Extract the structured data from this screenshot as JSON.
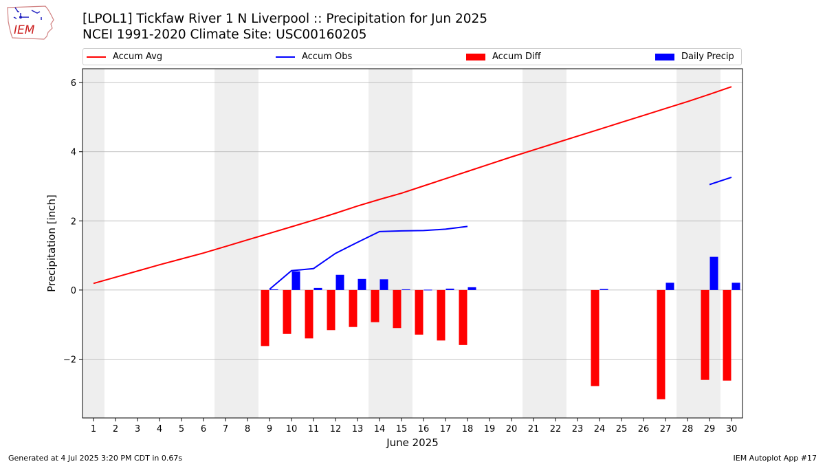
{
  "logo": {
    "text": "IEM"
  },
  "header": {
    "title_line1": "[LPOL1] Tickfaw River 1 N Liverpool :: Precipitation for Jun 2025",
    "title_line2": "NCEI 1991-2020 Climate Site: USC00160205"
  },
  "legend": {
    "accum_avg": "Accum Avg",
    "accum_obs": "Accum Obs",
    "accum_diff": "Accum Diff",
    "daily_precip": "Daily Precip"
  },
  "footer": {
    "generated": "Generated at 4 Jul 2025 3:20 PM CDT in 0.67s",
    "app": "IEM Autoplot App #17"
  },
  "colors": {
    "accum_avg": "#ff0000",
    "accum_obs": "#0000ff",
    "accum_diff": "#ff0000",
    "daily_precip": "#0000ff",
    "weekend_shade": "#eeeeee",
    "grid": "#b0b0b0"
  },
  "chart_data": {
    "type": "bar",
    "xlabel": "June 2025",
    "ylabel": "Precipitation [inch]",
    "x": [
      1,
      2,
      3,
      4,
      5,
      6,
      7,
      8,
      9,
      10,
      11,
      12,
      13,
      14,
      15,
      16,
      17,
      18,
      19,
      20,
      21,
      22,
      23,
      24,
      25,
      26,
      27,
      28,
      29,
      30
    ],
    "xlim": [
      0.5,
      30.5
    ],
    "ylim": [
      -3.7,
      6.4
    ],
    "yticks": [
      -2,
      0,
      2,
      4,
      6
    ],
    "ytick_labels": [
      "−2",
      "0",
      "2",
      "4",
      "6"
    ],
    "grid": "horizontal",
    "legend_position": "top",
    "weekend_shading": [
      [
        0.5,
        1.5
      ],
      [
        6.5,
        8.5
      ],
      [
        13.5,
        15.5
      ],
      [
        20.5,
        22.5
      ],
      [
        27.5,
        29.5
      ]
    ],
    "series": [
      {
        "name": "Accum Avg",
        "kind": "line",
        "x": [
          1,
          2,
          3,
          4,
          5,
          6,
          7,
          8,
          9,
          10,
          11,
          12,
          13,
          14,
          15,
          16,
          17,
          18,
          19,
          20,
          21,
          22,
          23,
          24,
          25,
          26,
          27,
          28,
          29,
          30
        ],
        "values": [
          0.19,
          0.37,
          0.55,
          0.73,
          0.9,
          1.07,
          1.26,
          1.45,
          1.64,
          1.83,
          2.02,
          2.22,
          2.43,
          2.62,
          2.8,
          3.01,
          3.22,
          3.43,
          3.64,
          3.85,
          4.05,
          4.25,
          4.45,
          4.65,
          4.85,
          5.05,
          5.25,
          5.45,
          5.66,
          5.88
        ]
      },
      {
        "name": "Accum Obs",
        "kind": "line",
        "segments": [
          {
            "x": [
              9,
              10,
              11,
              12,
              13,
              14,
              15,
              16,
              17,
              18
            ],
            "values": [
              0.02,
              0.56,
              0.62,
              1.06,
              1.38,
              1.69,
              1.71,
              1.72,
              1.76,
              1.84
            ]
          },
          {
            "x": [
              29,
              30
            ],
            "values": [
              3.05,
              3.26
            ]
          }
        ]
      },
      {
        "name": "Accum Diff",
        "kind": "bar",
        "x": [
          9,
          10,
          11,
          12,
          13,
          14,
          15,
          16,
          17,
          18,
          24,
          27,
          29,
          30
        ],
        "values": [
          -1.62,
          -1.27,
          -1.4,
          -1.16,
          -1.07,
          -0.93,
          -1.1,
          -1.29,
          -1.46,
          -1.59,
          -2.78,
          -3.16,
          -2.6,
          -2.62
        ]
      },
      {
        "name": "Daily Precip",
        "kind": "bar",
        "x": [
          9,
          10,
          11,
          12,
          13,
          14,
          15,
          16,
          17,
          18,
          24,
          27,
          29,
          30
        ],
        "values": [
          0.02,
          0.54,
          0.06,
          0.44,
          0.32,
          0.31,
          0.02,
          0.01,
          0.04,
          0.08,
          0.03,
          0.21,
          0.96,
          0.21
        ]
      }
    ]
  }
}
